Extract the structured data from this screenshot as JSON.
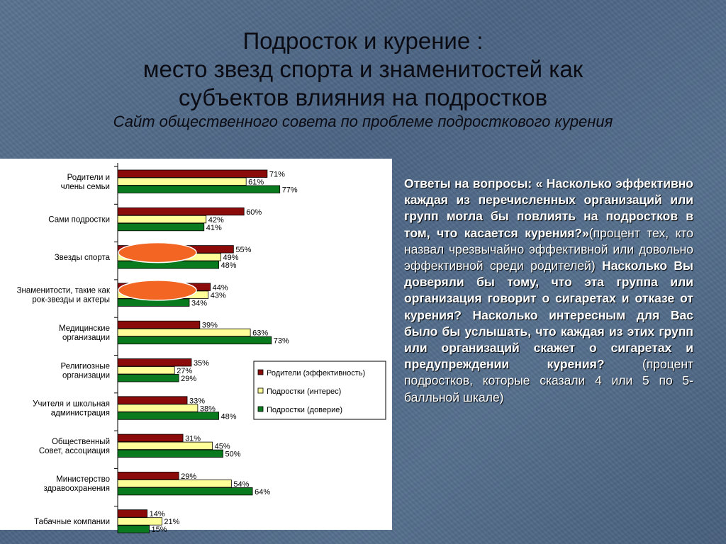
{
  "slide": {
    "title_line1": "Подросток  и курение :",
    "title_line2": "место звезд спорта и знаменитостей как",
    "title_line3": "субъектов влияния на подростков",
    "subtitle": "Сайт общественного совета по проблеме подросткового курения"
  },
  "description": {
    "q1": "Ответы на вопросы: «  Насколько эффективно каждая из перечисленных организаций или групп могла бы повлиять на подростков в том, что касается курения?»",
    "n1": "(процент тех, кто назвал чрезвычайно эффективной или довольно эффективной среди родителей)",
    "q2": " Насколько Вы доверяли бы тому, что эта группа или организация говорит о сигаретах и отказе от курения? Насколько интересным для Вас было бы услышать, что каждая из этих групп или организаций скажет о сигаретах и предупреждении курения?",
    "n2": " (процент подростков, которые сказали 4 или 5 по 5-балльной шкале)"
  },
  "colors": {
    "series1": "#8b0a0a",
    "series2": "#ffff99",
    "series3": "#0a7a1e",
    "highlight": "#f26522"
  },
  "chart_data": {
    "type": "bar",
    "orientation": "horizontal",
    "categories": [
      [
        "Родители и",
        "члены семьи"
      ],
      [
        "Сами подростки"
      ],
      [
        "Звезды спорта"
      ],
      [
        "Знаменитости, такие как",
        "рок-звезды и актеры"
      ],
      [
        "Медицинские",
        "организации"
      ],
      [
        "Религиозные",
        "организации"
      ],
      [
        "Учителя и школьная",
        "администрация"
      ],
      [
        "Общественный",
        "Совет, ассоциация"
      ],
      [
        "Министерство",
        "здравоохранения"
      ],
      [
        "Табачные компании"
      ]
    ],
    "series": [
      {
        "name": "Родители (эффективность)",
        "values": [
          71,
          60,
          55,
          44,
          39,
          35,
          33,
          31,
          29,
          14
        ]
      },
      {
        "name": "Подростки (интерес)",
        "values": [
          61,
          42,
          49,
          43,
          63,
          27,
          38,
          45,
          54,
          21
        ]
      },
      {
        "name": "Подростки (доверие)",
        "values": [
          77,
          41,
          48,
          34,
          73,
          29,
          48,
          50,
          64,
          15
        ]
      }
    ],
    "value_suffix": "%",
    "xlim": [
      0,
      100
    ],
    "highlighted_categories": [
      2,
      3
    ],
    "legend_position": "right"
  }
}
